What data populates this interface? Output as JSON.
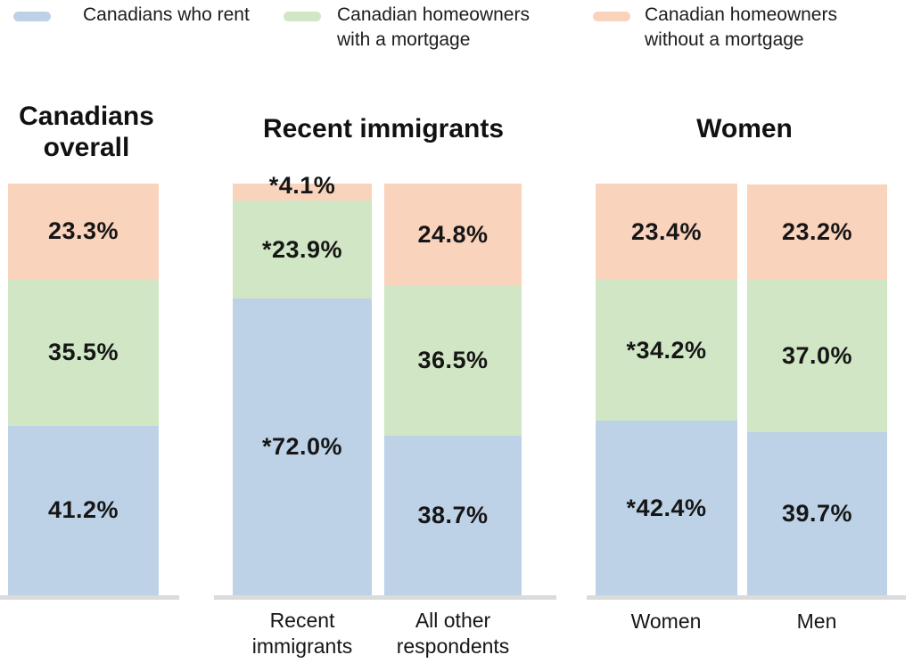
{
  "legend": [
    {
      "label": "Canadians who rent",
      "color": "#BDD2E7"
    },
    {
      "label": "Canadian homeowners with a mortgage",
      "color": "#D0E6C4"
    },
    {
      "label": "Canadian homeowners without a mortgage",
      "color": "#FAD3BC"
    }
  ],
  "colors": {
    "rent_blue": "#BDD2E7",
    "mortgage_green": "#D0E6C4",
    "no_mortgage_orange": "#FAD3BC",
    "baseline_gray": "#DBDBDB",
    "text": "#161616"
  },
  "chart_data": {
    "type": "bar",
    "stacked": true,
    "unit": "%",
    "ylim": [
      0,
      100
    ],
    "grid": false,
    "legend_position": "top",
    "series": [
      {
        "name": "Canadians who rent",
        "color": "#BDD2E7"
      },
      {
        "name": "Canadian homeowners with a mortgage",
        "color": "#D0E6C4"
      },
      {
        "name": "Canadian homeowners without a mortgage",
        "color": "#FAD3BC"
      }
    ],
    "groups": [
      {
        "title": "Canadians overall",
        "bars": [
          {
            "x_label": "",
            "segments": [
              {
                "series": "Canadians who rent",
                "value": 41.2,
                "label": "41.2%"
              },
              {
                "series": "Canadian homeowners with a mortgage",
                "value": 35.5,
                "label": "35.5%"
              },
              {
                "series": "Canadian homeowners without a mortgage",
                "value": 23.3,
                "label": "23.3%"
              }
            ]
          }
        ]
      },
      {
        "title": "Recent immigrants",
        "bars": [
          {
            "x_label": "Recent immigrants",
            "segments": [
              {
                "series": "Canadians who rent",
                "value": 72.0,
                "label": "*72.0%"
              },
              {
                "series": "Canadian homeowners with a mortgage",
                "value": 23.9,
                "label": "*23.9%"
              },
              {
                "series": "Canadian homeowners without a mortgage",
                "value": 4.1,
                "label": "*4.1%"
              }
            ]
          },
          {
            "x_label": "All other respondents",
            "segments": [
              {
                "series": "Canadians who rent",
                "value": 38.7,
                "label": "38.7%"
              },
              {
                "series": "Canadian homeowners with a mortgage",
                "value": 36.5,
                "label": "36.5%"
              },
              {
                "series": "Canadian homeowners without a mortgage",
                "value": 24.8,
                "label": "24.8%"
              }
            ]
          }
        ]
      },
      {
        "title": "Women",
        "bars": [
          {
            "x_label": "Women",
            "segments": [
              {
                "series": "Canadians who rent",
                "value": 42.4,
                "label": "*42.4%"
              },
              {
                "series": "Canadian homeowners with a mortgage",
                "value": 34.2,
                "label": "*34.2%"
              },
              {
                "series": "Canadian homeowners without a mortgage",
                "value": 23.4,
                "label": "23.4%"
              }
            ]
          },
          {
            "x_label": "Men",
            "segments": [
              {
                "series": "Canadians who rent",
                "value": 39.7,
                "label": "39.7%"
              },
              {
                "series": "Canadian homeowners with a mortgage",
                "value": 37.0,
                "label": "37.0%"
              },
              {
                "series": "Canadian homeowners without a mortgage",
                "value": 23.2,
                "label": "23.2%"
              }
            ]
          }
        ]
      }
    ]
  }
}
